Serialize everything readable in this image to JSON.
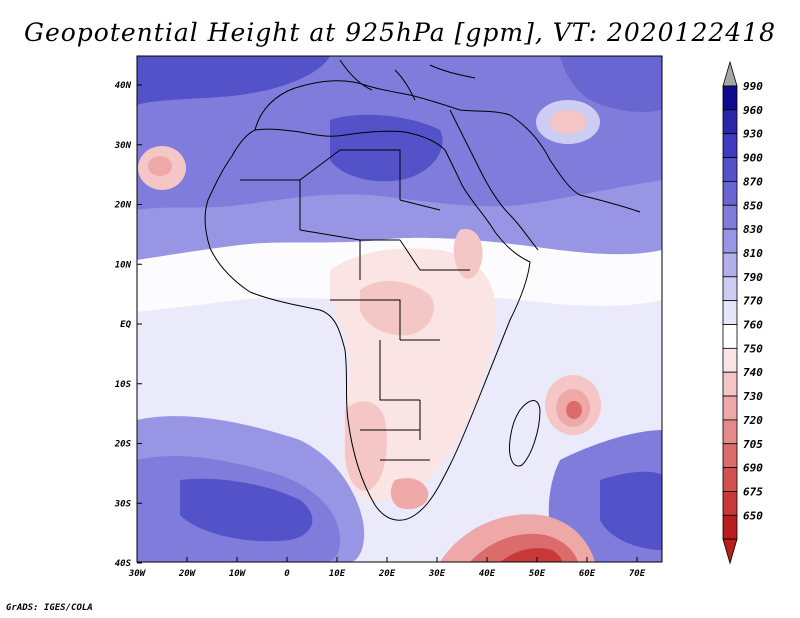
{
  "title": "Geopotential Height at 925hPa [gpm], VT: 2020122418",
  "credit": "GrADS: IGES/COLA",
  "lat_labels": [
    "40N",
    "30N",
    "20N",
    "10N",
    "EQ",
    "10S",
    "20S",
    "30S",
    "40S"
  ],
  "lon_labels": [
    "30W",
    "20W",
    "10W",
    "0",
    "10E",
    "20E",
    "30E",
    "40E",
    "50E",
    "60E",
    "70E"
  ],
  "colorbar": {
    "labels": [
      "990",
      "960",
      "930",
      "900",
      "870",
      "850",
      "830",
      "810",
      "790",
      "770",
      "760",
      "750",
      "740",
      "730",
      "720",
      "705",
      "690",
      "675",
      "650"
    ],
    "colors": [
      "#0e0a8c",
      "#2a28a8",
      "#3d3cbe",
      "#5352c8",
      "#6966d2",
      "#7f7cdb",
      "#9896e4",
      "#b2b0ec",
      "#cdccf3",
      "#e6e6f9",
      "#ffffff",
      "#fbe4e4",
      "#f5c6c6",
      "#eea8a8",
      "#e58a8a",
      "#dc6c6c",
      "#d25050",
      "#c83838",
      "#b81e1e"
    ],
    "arrow_top_color": "#a6a6a6",
    "arrow_bottom_color": "#b81e1e"
  }
}
